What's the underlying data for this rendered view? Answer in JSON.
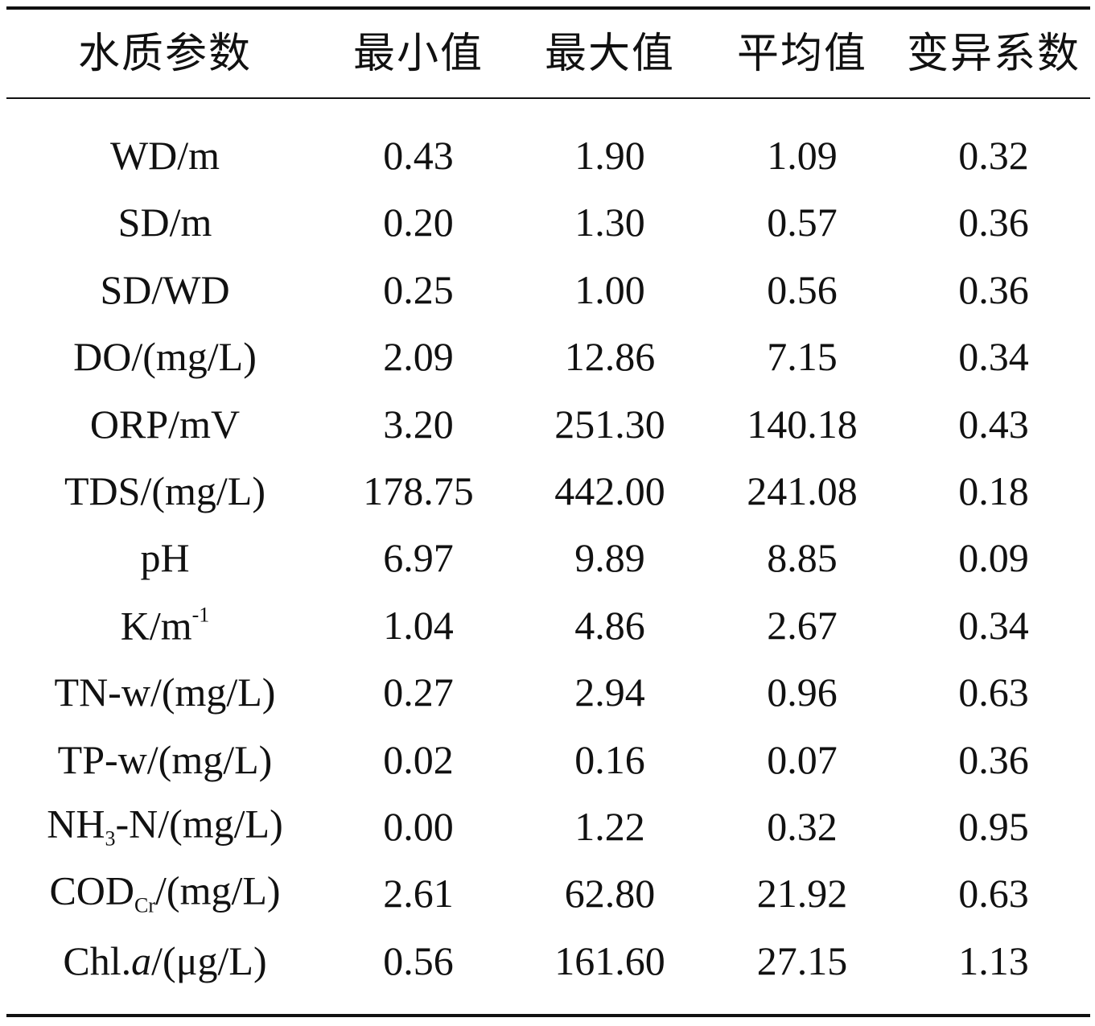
{
  "table": {
    "header": [
      "水质参数",
      "最小值",
      "最大值",
      "平均值",
      "变异系数"
    ],
    "rows": [
      {
        "parameter": [
          "WD/m"
        ],
        "values": [
          "0.43",
          "1.90",
          "1.09",
          "0.32"
        ]
      },
      {
        "parameter": [
          "SD/m"
        ],
        "values": [
          "0.20",
          "1.30",
          "0.57",
          "0.36"
        ]
      },
      {
        "parameter": [
          "SD/WD"
        ],
        "values": [
          "0.25",
          "1.00",
          "0.56",
          "0.36"
        ]
      },
      {
        "parameter": [
          "DO/(mg/L)"
        ],
        "values": [
          "2.09",
          "12.86",
          "7.15",
          "0.34"
        ]
      },
      {
        "parameter": [
          "ORP/mV"
        ],
        "values": [
          "3.20",
          "251.30",
          "140.18",
          "0.43"
        ]
      },
      {
        "parameter": [
          "TDS/(mg/L)"
        ],
        "values": [
          "178.75",
          "442.00",
          "241.08",
          "0.18"
        ]
      },
      {
        "parameter": [
          "pH"
        ],
        "values": [
          "6.97",
          "9.89",
          "8.85",
          "0.09"
        ]
      },
      {
        "parameter": [
          "K/m",
          {
            "sup": "-1"
          }
        ],
        "values": [
          "1.04",
          "4.86",
          "2.67",
          "0.34"
        ]
      },
      {
        "parameter": [
          "TN-w/(mg/L)"
        ],
        "values": [
          "0.27",
          "2.94",
          "0.96",
          "0.63"
        ]
      },
      {
        "parameter": [
          "TP-w/(mg/L)"
        ],
        "values": [
          "0.02",
          "0.16",
          "0.07",
          "0.36"
        ]
      },
      {
        "parameter": [
          "NH",
          {
            "sub": "3"
          },
          "-N/(mg/L)"
        ],
        "values": [
          "0.00",
          "1.22",
          "0.32",
          "0.95"
        ]
      },
      {
        "parameter": [
          "COD",
          {
            "sub": "Cr"
          },
          "/(mg/L)"
        ],
        "values": [
          "2.61",
          "62.80",
          "21.92",
          "0.63"
        ]
      },
      {
        "parameter": [
          "Chl.",
          {
            "italic": "a"
          },
          "/(μg/L)"
        ],
        "values": [
          "0.56",
          "161.60",
          "27.15",
          "1.13"
        ]
      }
    ]
  }
}
